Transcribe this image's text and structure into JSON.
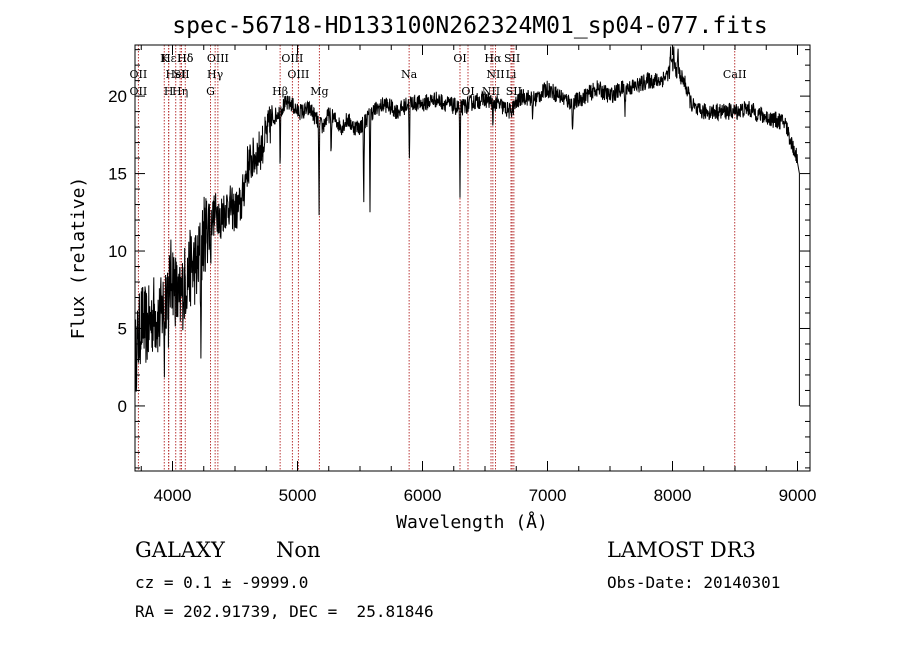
{
  "chart_data": {
    "type": "line",
    "title": "spec-56718-HD133100N262324M01_sp04-077.fits",
    "xlabel": "Wavelength (Å)",
    "ylabel": "Flux (relative)",
    "xlim": [
      3700,
      9100
    ],
    "ylim": [
      -4.2,
      23.3
    ],
    "xticks": [
      4000,
      5000,
      6000,
      7000,
      8000,
      9000
    ],
    "yticks": [
      0,
      5,
      10,
      15,
      20
    ],
    "line_color": "#000000",
    "marker_color": "#b22222",
    "lines": [
      {
        "w": 3970,
        "label": "Hε",
        "row": 0
      },
      {
        "w": 3727,
        "label": "OII",
        "row": 1
      },
      {
        "w": 3727,
        "label": "OII",
        "row": 2
      },
      {
        "w": 4102,
        "label": "Hδ",
        "row": 0
      },
      {
        "w": 4026,
        "label": "HeI",
        "row": 1
      },
      {
        "w": 4061,
        "label": "Hη",
        "row": 2
      },
      {
        "w": 3934,
        "label": "K",
        "row": 0
      },
      {
        "w": 3969,
        "label": "H",
        "row": 2
      },
      {
        "w": 4102,
        "label": "Hδ",
        "row": 0
      },
      {
        "w": 4072,
        "label": "SII",
        "row": 1
      },
      {
        "w": 4363,
        "label": "OIII",
        "row": 0
      },
      {
        "w": 4341,
        "label": "Hγ",
        "row": 1
      },
      {
        "w": 4304,
        "label": "G",
        "row": 2
      },
      {
        "w": 4861,
        "label": "Hβ",
        "row": 2
      },
      {
        "w": 4959,
        "label": "OIII",
        "row": 0
      },
      {
        "w": 5007,
        "label": "OIII",
        "row": 1
      },
      {
        "w": 5175,
        "label": "Mg",
        "row": 2
      },
      {
        "w": 5893,
        "label": "Na",
        "row": 1
      },
      {
        "w": 6300,
        "label": "OI",
        "row": 0
      },
      {
        "w": 6364,
        "label": "OI",
        "row": 2
      },
      {
        "w": 6563,
        "label": "Hα",
        "row": 0
      },
      {
        "w": 6584,
        "label": "NII",
        "row": 1
      },
      {
        "w": 6548,
        "label": "NII",
        "row": 2
      },
      {
        "w": 6717,
        "label": "SII",
        "row": 0
      },
      {
        "w": 6708,
        "label": "Li",
        "row": 1
      },
      {
        "w": 6731,
        "label": "SII",
        "row": 2
      },
      {
        "w": 8498,
        "label": "CaII",
        "row": 1
      }
    ],
    "anchors": [
      [
        3700,
        3.0
      ],
      [
        3750,
        5.5
      ],
      [
        3800,
        5.0
      ],
      [
        3850,
        6.0
      ],
      [
        3900,
        5.5
      ],
      [
        3950,
        7.5
      ],
      [
        4000,
        8.5
      ],
      [
        4050,
        6.5
      ],
      [
        4100,
        8.0
      ],
      [
        4150,
        9.0
      ],
      [
        4200,
        9.0
      ],
      [
        4250,
        11.0
      ],
      [
        4300,
        12.0
      ],
      [
        4350,
        12.5
      ],
      [
        4400,
        12.5
      ],
      [
        4450,
        13.0
      ],
      [
        4500,
        12.5
      ],
      [
        4550,
        13.0
      ],
      [
        4600,
        15.5
      ],
      [
        4650,
        16.0
      ],
      [
        4700,
        16.5
      ],
      [
        4750,
        17.5
      ],
      [
        4800,
        18.5
      ],
      [
        4850,
        19.0
      ],
      [
        4900,
        19.5
      ],
      [
        4950,
        19.5
      ],
      [
        5000,
        19.0
      ],
      [
        5050,
        19.0
      ],
      [
        5100,
        19.2
      ],
      [
        5150,
        18.5
      ],
      [
        5200,
        18.0
      ],
      [
        5250,
        18.8
      ],
      [
        5300,
        18.5
      ],
      [
        5350,
        18.0
      ],
      [
        5400,
        18.5
      ],
      [
        5450,
        18.0
      ],
      [
        5500,
        18.0
      ],
      [
        5550,
        18.5
      ],
      [
        5600,
        19.0
      ],
      [
        5700,
        19.5
      ],
      [
        5800,
        19.0
      ],
      [
        5900,
        19.6
      ],
      [
        6000,
        19.5
      ],
      [
        6100,
        19.8
      ],
      [
        6200,
        19.5
      ],
      [
        6300,
        19.2
      ],
      [
        6400,
        19.6
      ],
      [
        6500,
        19.8
      ],
      [
        6600,
        19.5
      ],
      [
        6700,
        19.0
      ],
      [
        6800,
        20.0
      ],
      [
        6900,
        19.8
      ],
      [
        7000,
        20.5
      ],
      [
        7100,
        20.0
      ],
      [
        7200,
        19.5
      ],
      [
        7300,
        20.0
      ],
      [
        7400,
        20.5
      ],
      [
        7500,
        20.0
      ],
      [
        7600,
        20.5
      ],
      [
        7700,
        20.6
      ],
      [
        7800,
        21.0
      ],
      [
        7900,
        21.0
      ],
      [
        7950,
        21.3
      ],
      [
        8000,
        22.0
      ],
      [
        8050,
        21.5
      ],
      [
        8100,
        20.8
      ],
      [
        8150,
        19.5
      ],
      [
        8200,
        19.0
      ],
      [
        8300,
        19.0
      ],
      [
        8400,
        19.0
      ],
      [
        8500,
        19.0
      ],
      [
        8600,
        19.2
      ],
      [
        8700,
        18.8
      ],
      [
        8800,
        18.5
      ],
      [
        8900,
        18.3
      ],
      [
        8950,
        17.0
      ],
      [
        9000,
        16.0
      ]
    ],
    "dips": [
      {
        "w": 3935,
        "d": 4.0
      },
      {
        "w": 3970,
        "d": 3.0
      },
      {
        "w": 4227,
        "d": 6.0
      },
      {
        "w": 4305,
        "d": 3.0
      },
      {
        "w": 4385,
        "d": 2.5
      },
      {
        "w": 4861,
        "d": 3.5
      },
      {
        "w": 5172,
        "d": 6.0
      },
      {
        "w": 5269,
        "d": 2.5
      },
      {
        "w": 5530,
        "d": 5.0
      },
      {
        "w": 5580,
        "d": 6.0
      },
      {
        "w": 5895,
        "d": 4.0
      },
      {
        "w": 6300,
        "d": 6.0
      },
      {
        "w": 6563,
        "d": 2.0
      },
      {
        "w": 6880,
        "d": 1.5
      },
      {
        "w": 7200,
        "d": 2.0
      },
      {
        "w": 7620,
        "d": 2.0
      }
    ],
    "spikes": [
      {
        "w": 7985,
        "h": 1.5
      },
      {
        "w": 8010,
        "h": 1.0
      },
      {
        "w": 8045,
        "h": 1.5
      }
    ],
    "edge_drop": {
      "w": 9015,
      "to": 0
    }
  },
  "info": {
    "class": "GALAXY",
    "subclass": "Non",
    "survey": "LAMOST DR3",
    "cz": "cz = 0.1 ± -9999.0",
    "obs_date": "Obs-Date: 20140301",
    "radec": "RA = 202.91739, DEC =  25.81846"
  }
}
